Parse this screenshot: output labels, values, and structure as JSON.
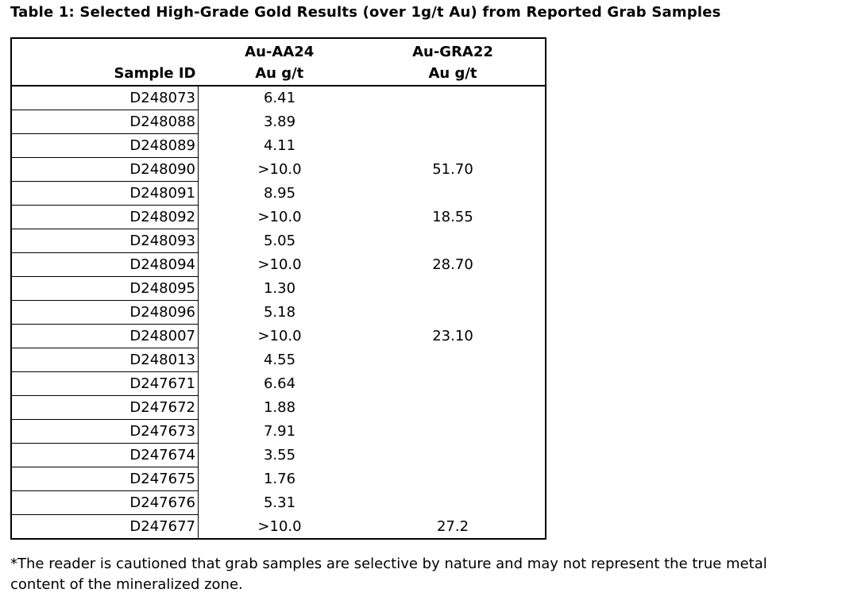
{
  "title": "Table 1: Selected High-Grade Gold Results (over 1g/t Au) from Reported Grab Samples",
  "table": {
    "header": [
      [
        "Sample ID"
      ],
      [
        "Au-AA24",
        "Au g/t"
      ],
      [
        "Au-GRA22",
        "Au g/t"
      ]
    ],
    "rows": [
      [
        "D248073",
        "6.41"
      ],
      [
        "D248088",
        "3.89"
      ],
      [
        "D248089",
        "4.11"
      ],
      [
        "D248090",
        ">10.0",
        "51.70"
      ],
      [
        "D248091",
        "8.95"
      ],
      [
        "D248092",
        ">10.0",
        "18.55"
      ],
      [
        "D248093",
        "5.05"
      ],
      [
        "D248094",
        ">10.0",
        "28.70"
      ],
      [
        "D248095",
        "1.30"
      ],
      [
        "D248096",
        "5.18"
      ],
      [
        "D248007",
        ">10.0",
        "23.10"
      ],
      [
        "D248013",
        "4.55"
      ],
      [
        "D247671",
        "6.64"
      ],
      [
        "D247672",
        "1.88"
      ],
      [
        "D247673",
        "7.91"
      ],
      [
        "D247674",
        "3.55"
      ],
      [
        "D247675",
        "1.76"
      ],
      [
        "D247676",
        "5.31"
      ],
      [
        "D247677",
        ">10.0",
        "27.2"
      ]
    ]
  },
  "footnote": [
    "*The reader is cautioned that grab samples are selective by nature and may not represent the true metal",
    "content of the mineralized zone."
  ]
}
